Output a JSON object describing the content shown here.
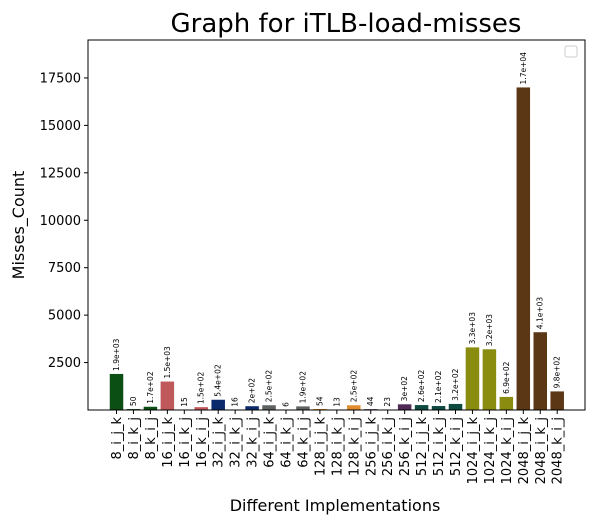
{
  "chart_data": {
    "type": "bar",
    "title": "Graph for iTLB-load-misses",
    "xlabel": "Different Implementations",
    "ylabel": "Misses_Count",
    "ylim": [
      0,
      19500
    ],
    "yticks": [
      2500,
      5000,
      7500,
      10000,
      12500,
      15000,
      17500
    ],
    "ytick_labels": [
      "2500",
      "5000",
      "7500",
      "10000",
      "12500",
      "15000",
      "17500"
    ],
    "legend": "top-right",
    "grid": false,
    "categories": [
      "8_i_j_k",
      "8_i_k_j",
      "8_k_i_j",
      "16_i_j_k",
      "16_i_k_j",
      "16_k_i_j",
      "32_i_j_k",
      "32_i_k_j",
      "32_k_i_j",
      "64_i_j_k",
      "64_i_k_j",
      "64_k_i_j",
      "128_i_j_k",
      "128_i_k_j",
      "128_k_i_j",
      "256_i_j_k",
      "256_i_k_j",
      "256_k_i_j",
      "512_i_j_k",
      "512_i_k_j",
      "512_k_i_j",
      "1024_i_j_k",
      "1024_i_k_j",
      "1024_k_i_j",
      "2048_i_j_k",
      "2048_i_k_j",
      "2048_k_i_j"
    ],
    "values": [
      1900,
      50,
      170,
      1500,
      15,
      150,
      540,
      16,
      200,
      250,
      6,
      190,
      54,
      13,
      250,
      44,
      23,
      300,
      260,
      210,
      320,
      3300,
      3200,
      690,
      17000,
      4100,
      980
    ],
    "data_labels": [
      "1.9e+03",
      "50",
      "1.7e+02",
      "1.5e+03",
      "15",
      "1.5e+02",
      "5.4e+02",
      "16",
      "2e+02",
      "2.5e+02",
      "6",
      "1.9e+02",
      "54",
      "13",
      "2.5e+02",
      "44",
      "23",
      "3e+02",
      "2.6e+02",
      "2.1e+02",
      "3.2e+02",
      "3.3e+03",
      "3.2e+03",
      "6.9e+02",
      "1.7e+04",
      "4.1e+03",
      "9.8e+02"
    ],
    "colors": [
      "#0b4f14",
      "#0b4f14",
      "#0b4f14",
      "#c0595b",
      "#c0595b",
      "#c0595b",
      "#0b2a6b",
      "#0b2a6b",
      "#0b2a6b",
      "#5f6262",
      "#5f6262",
      "#5f6262",
      "#e08c2c",
      "#e08c2c",
      "#e08c2c",
      "#4e2a55",
      "#4e2a55",
      "#4e2a55",
      "#0d4a42",
      "#0d4a42",
      "#0d4a42",
      "#8a8c10",
      "#8a8c10",
      "#8a8c10",
      "#5c3716",
      "#5c3716",
      "#5c3716"
    ]
  }
}
